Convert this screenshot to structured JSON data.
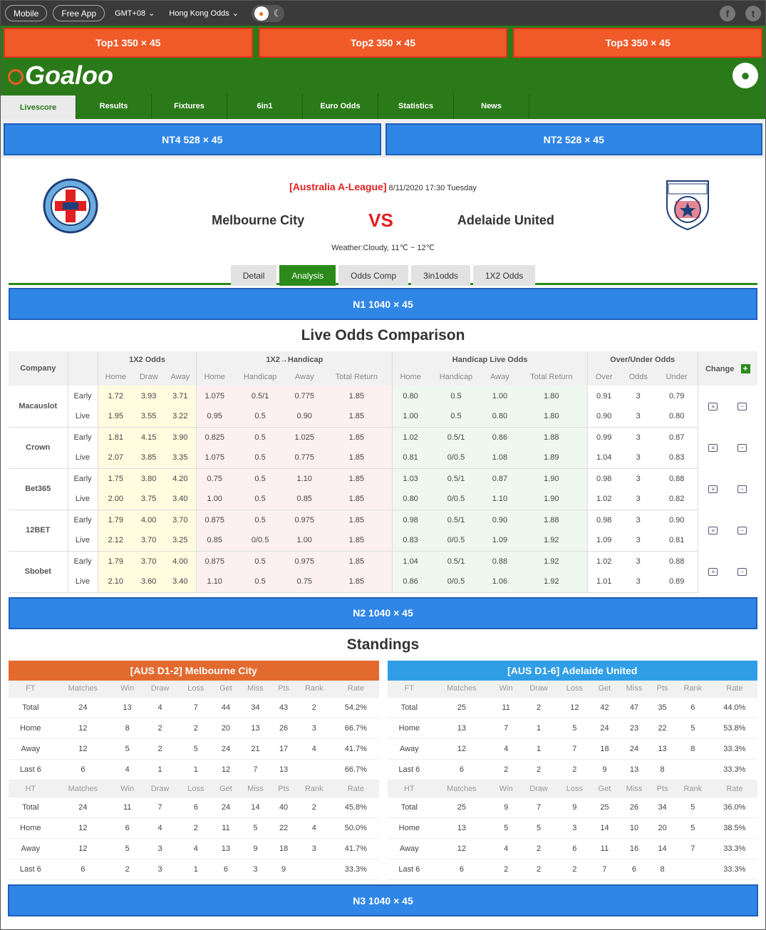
{
  "topbar": {
    "mobile": "Mobile",
    "app": "Free App",
    "tz": "GMT+08",
    "odds_type": "Hong Kong  Odds"
  },
  "ads": {
    "top": [
      "Top1  350 × 45",
      "Top2  350 × 45",
      "Top3  350 × 45"
    ],
    "nt": [
      "NT4  528 × 45",
      "NT2  528 × 45"
    ],
    "n1": "N1  1040 × 45",
    "n2": "N2  1040 × 45",
    "n3": "N3  1040 × 45"
  },
  "logo": "Goaloo",
  "nav": [
    "Livescore",
    "Results",
    "Fixtures",
    "6in1",
    "Euro Odds",
    "Statistics",
    "News"
  ],
  "match": {
    "league": "[Australia A-League]",
    "datetime": "8/11/2020 17:30 Tuesday",
    "home": "Melbourne City",
    "away": "Adelaide United",
    "vs": "VS",
    "weather": "Weather:Cloudy, 11℃ ~ 12℃"
  },
  "tabs": [
    "Detail",
    "Analysis",
    "Odds Comp",
    "3in1odds",
    "1X2 Odds"
  ],
  "odds": {
    "title": "Live Odds Comparison",
    "groups": [
      "1X2 Odds",
      "1X2→Handicap",
      "Handicap Live Odds",
      "Over/Under Odds"
    ],
    "company_label": "Company",
    "change_label": "Change",
    "sub": [
      "Home",
      "Draw",
      "Away",
      "Home",
      "Handicap",
      "Away",
      "Total Return",
      "Home",
      "Handicap",
      "Away",
      "Total Return",
      "Over",
      "Odds",
      "Under"
    ],
    "rows": [
      {
        "company": "Macauslot",
        "early": [
          "1.72",
          "3.93",
          "3.71",
          "1.075",
          "0.5/1",
          "0.775",
          "1.85",
          "0.80",
          "0.5",
          "1.00",
          "1.80",
          "0.91",
          "3",
          "0.79"
        ],
        "live": [
          "1.95",
          "3.55",
          "3.22",
          "0.95",
          "0.5",
          "0.90",
          "1.85",
          "1.00",
          "0.5",
          "0.80",
          "1.80",
          "0.90",
          "3",
          "0.80"
        ]
      },
      {
        "company": "Crown",
        "early": [
          "1.81",
          "4.15",
          "3.90",
          "0.825",
          "0.5",
          "1.025",
          "1.85",
          "1.02",
          "0.5/1",
          "0.86",
          "1.88",
          "0.99",
          "3",
          "0.87"
        ],
        "live": [
          "2.07",
          "3.85",
          "3.35",
          "1.075",
          "0.5",
          "0.775",
          "1.85",
          "0.81",
          "0/0.5",
          "1.08",
          "1.89",
          "1.04",
          "3",
          "0.83"
        ]
      },
      {
        "company": "Bet365",
        "early": [
          "1.75",
          "3.80",
          "4.20",
          "0.75",
          "0.5",
          "1.10",
          "1.85",
          "1.03",
          "0.5/1",
          "0.87",
          "1.90",
          "0.98",
          "3",
          "0.88"
        ],
        "live": [
          "2.00",
          "3.75",
          "3.40",
          "1.00",
          "0.5",
          "0.85",
          "1.85",
          "0.80",
          "0/0.5",
          "1.10",
          "1.90",
          "1.02",
          "3",
          "0.82"
        ]
      },
      {
        "company": "12BET",
        "early": [
          "1.79",
          "4.00",
          "3.70",
          "0.875",
          "0.5",
          "0.975",
          "1.85",
          "0.98",
          "0.5/1",
          "0.90",
          "1.88",
          "0.98",
          "3",
          "0.90"
        ],
        "live": [
          "2.12",
          "3.70",
          "3.25",
          "0.85",
          "0/0.5",
          "1.00",
          "1.85",
          "0.83",
          "0/0.5",
          "1.09",
          "1.92",
          "1.09",
          "3",
          "0.81"
        ]
      },
      {
        "company": "Sbobet",
        "early": [
          "1.79",
          "3.70",
          "4.00",
          "0.875",
          "0.5",
          "0.975",
          "1.85",
          "1.04",
          "0.5/1",
          "0.88",
          "1.92",
          "1.02",
          "3",
          "0.88"
        ],
        "live": [
          "2.10",
          "3.60",
          "3.40",
          "1.10",
          "0.5",
          "0.75",
          "1.85",
          "0.86",
          "0/0.5",
          "1.06",
          "1.92",
          "1.01",
          "3",
          "0.89"
        ]
      }
    ],
    "early": "Early",
    "live": "Live"
  },
  "standings": {
    "title": "Standings",
    "cols_ft": [
      "FT",
      "Matches",
      "Win",
      "Draw",
      "Loss",
      "Get",
      "Miss",
      "Pts",
      "Rank",
      "Rate"
    ],
    "cols_ht": [
      "HT",
      "Matches",
      "Win",
      "Draw",
      "Loss",
      "Get",
      "Miss",
      "Pts",
      "Rank",
      "Rate"
    ],
    "home": {
      "header": "[AUS D1-2]  Melbourne City",
      "ft": [
        [
          "Total",
          "24",
          "13",
          "4",
          "7",
          "44",
          "34",
          "43",
          "2",
          "54.2%"
        ],
        [
          "Home",
          "12",
          "8",
          "2",
          "2",
          "20",
          "13",
          "26",
          "3",
          "66.7%"
        ],
        [
          "Away",
          "12",
          "5",
          "2",
          "5",
          "24",
          "21",
          "17",
          "4",
          "41.7%"
        ],
        [
          "Last 6",
          "6",
          "4",
          "1",
          "1",
          "12",
          "7",
          "13",
          "",
          "66.7%"
        ]
      ],
      "ht": [
        [
          "Total",
          "24",
          "11",
          "7",
          "6",
          "24",
          "14",
          "40",
          "2",
          "45.8%"
        ],
        [
          "Home",
          "12",
          "6",
          "4",
          "2",
          "11",
          "5",
          "22",
          "4",
          "50.0%"
        ],
        [
          "Away",
          "12",
          "5",
          "3",
          "4",
          "13",
          "9",
          "18",
          "3",
          "41.7%"
        ],
        [
          "Last 6",
          "6",
          "2",
          "3",
          "1",
          "6",
          "3",
          "9",
          "",
          "33.3%"
        ]
      ]
    },
    "away": {
      "header": "[AUS D1-6] Adelaide United",
      "ft": [
        [
          "Total",
          "25",
          "11",
          "2",
          "12",
          "42",
          "47",
          "35",
          "6",
          "44.0%"
        ],
        [
          "Home",
          "13",
          "7",
          "1",
          "5",
          "24",
          "23",
          "22",
          "5",
          "53.8%"
        ],
        [
          "Away",
          "12",
          "4",
          "1",
          "7",
          "18",
          "24",
          "13",
          "8",
          "33.3%"
        ],
        [
          "Last 6",
          "6",
          "2",
          "2",
          "2",
          "9",
          "13",
          "8",
          "",
          "33.3%"
        ]
      ],
      "ht": [
        [
          "Total",
          "25",
          "9",
          "7",
          "9",
          "25",
          "26",
          "34",
          "5",
          "36.0%"
        ],
        [
          "Home",
          "13",
          "5",
          "5",
          "3",
          "14",
          "10",
          "20",
          "5",
          "38.5%"
        ],
        [
          "Away",
          "12",
          "4",
          "2",
          "6",
          "11",
          "16",
          "14",
          "7",
          "33.3%"
        ],
        [
          "Last 6",
          "6",
          "2",
          "2",
          "2",
          "7",
          "6",
          "8",
          "",
          "33.3%"
        ]
      ]
    }
  },
  "colors": {
    "green": "#2b7a1a",
    "orange": "#f05a28",
    "blue": "#2f86e6",
    "red": "#e02020"
  }
}
